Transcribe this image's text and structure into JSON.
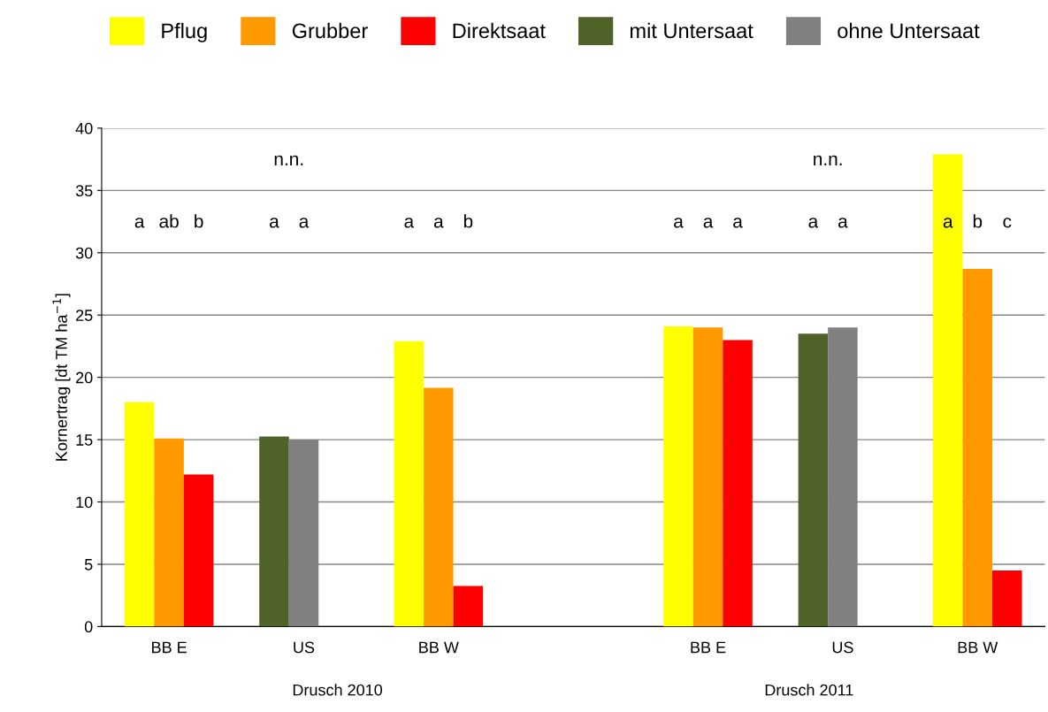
{
  "chart_data": {
    "type": "bar",
    "ylabel": "Kornertrag [dt TM ha$^{−1}$]",
    "categories": [
      "BB E",
      "US",
      "BB W",
      null,
      "BB E",
      "US",
      "BB W"
    ],
    "series": [
      {
        "name": "Pflug",
        "color": "#ffff00",
        "values": [
          18.0,
          null,
          22.9,
          null,
          24.1,
          null,
          37.9
        ]
      },
      {
        "name": "Grubber",
        "color": "#ff9900",
        "values": [
          15.1,
          null,
          19.15,
          null,
          24.0,
          null,
          28.7
        ]
      },
      {
        "name": "Direktsaat",
        "color": "#ff0000",
        "values": [
          12.2,
          null,
          3.26,
          null,
          23.0,
          null,
          4.5
        ]
      },
      {
        "name": "mit Untersaat",
        "color": "#4f6228",
        "values": [
          null,
          15.25,
          null,
          null,
          null,
          23.5,
          null
        ]
      },
      {
        "name": "ohne Untersaat",
        "color": "#808080",
        "values": [
          null,
          15.0,
          null,
          null,
          null,
          24.0,
          null
        ]
      }
    ],
    "ylim": [
      0,
      40
    ],
    "yticks": [
      0,
      5,
      10,
      15,
      20,
      25,
      30,
      35,
      40
    ],
    "grid": "y",
    "legend": "top",
    "annotations": [
      "a ab b",
      "a a",
      "a a b",
      "a a a",
      "a a",
      "a b c",
      "n.n.",
      "n.n.",
      "Drusch 2010",
      "Drusch 2011"
    ]
  }
}
